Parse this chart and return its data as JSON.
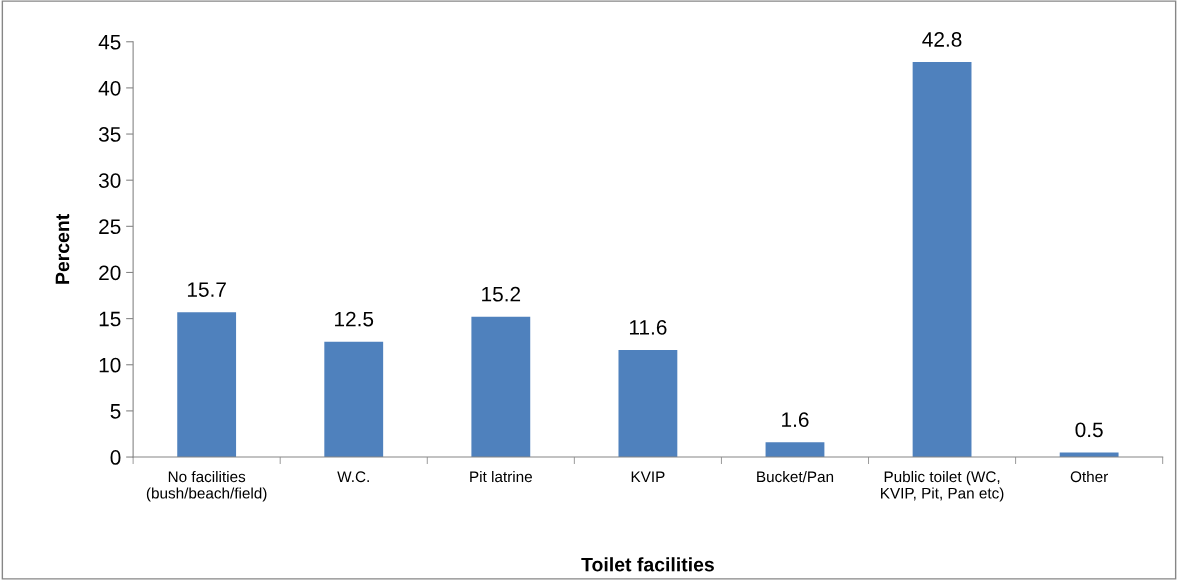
{
  "chart_data": {
    "type": "bar",
    "xlabel": "Toilet facilities",
    "ylabel": "Percent",
    "categories": [
      "No facilities\n(bush/beach/field)",
      "W.C.",
      "Pit latrine",
      "KVIP",
      "Bucket/Pan",
      "Public toilet (WC,\nKVIP, Pit, Pan etc)",
      "Other"
    ],
    "values": [
      15.7,
      12.5,
      15.2,
      11.6,
      1.6,
      42.8,
      0.5
    ],
    "color": "#4f81bd",
    "ylim": [
      0,
      45
    ],
    "yticks": [
      0,
      5,
      10,
      15,
      20,
      25,
      30,
      35,
      40,
      45
    ],
    "grid": false,
    "data_labels": true
  }
}
